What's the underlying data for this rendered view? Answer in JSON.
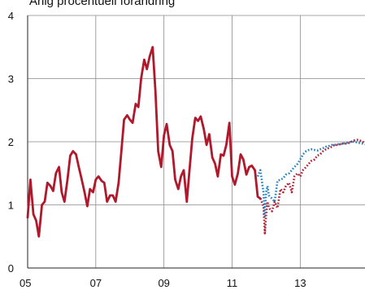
{
  "chart_data": {
    "type": "line",
    "title": "Årlig procentuell förändring",
    "xlabel": "",
    "ylabel": "",
    "x_ticks": [
      "05",
      "07",
      "09",
      "11",
      "13"
    ],
    "x_tick_values": [
      2005,
      2007,
      2009,
      2011,
      2013
    ],
    "xlim": [
      2005.0,
      2014.9
    ],
    "ylim": [
      0,
      4
    ],
    "y_ticks": [
      0,
      1,
      2,
      3,
      4
    ],
    "grid": true,
    "legend": "none",
    "series": [
      {
        "style": "solid",
        "color": "#b0182c",
        "x": [
          2005.0,
          2005.08,
          2005.17,
          2005.25,
          2005.33,
          2005.42,
          2005.5,
          2005.58,
          2005.67,
          2005.75,
          2005.83,
          2005.92,
          2006.0,
          2006.08,
          2006.17,
          2006.25,
          2006.33,
          2006.42,
          2006.5,
          2006.58,
          2006.67,
          2006.75,
          2006.83,
          2006.92,
          2007.0,
          2007.08,
          2007.17,
          2007.25,
          2007.33,
          2007.42,
          2007.5,
          2007.58,
          2007.67,
          2007.75,
          2007.83,
          2007.92,
          2008.0,
          2008.08,
          2008.17,
          2008.25,
          2008.33,
          2008.42,
          2008.5,
          2008.58,
          2008.67,
          2008.75,
          2008.83,
          2008.92,
          2009.0,
          2009.08,
          2009.17,
          2009.25,
          2009.33,
          2009.42,
          2009.5,
          2009.58,
          2009.67,
          2009.75,
          2009.83,
          2009.92,
          2010.0,
          2010.08,
          2010.17,
          2010.25,
          2010.33,
          2010.42,
          2010.5,
          2010.58,
          2010.67,
          2010.75,
          2010.83,
          2010.92,
          2011.0,
          2011.08,
          2011.17,
          2011.25,
          2011.33,
          2011.42,
          2011.5,
          2011.58,
          2011.67,
          2011.75,
          2011.83
        ],
        "y": [
          0.8,
          1.4,
          0.85,
          0.75,
          0.5,
          1.0,
          1.05,
          1.35,
          1.3,
          1.22,
          1.5,
          1.6,
          1.2,
          1.05,
          1.4,
          1.78,
          1.85,
          1.8,
          1.6,
          1.42,
          1.2,
          0.98,
          1.25,
          1.2,
          1.4,
          1.45,
          1.38,
          1.35,
          1.05,
          1.15,
          1.15,
          1.05,
          1.35,
          1.85,
          2.35,
          2.42,
          2.35,
          2.3,
          2.6,
          2.55,
          3.0,
          3.3,
          3.15,
          3.35,
          3.5,
          2.8,
          1.85,
          1.6,
          2.1,
          2.28,
          1.95,
          1.85,
          1.4,
          1.25,
          1.45,
          1.55,
          1.05,
          1.55,
          2.05,
          2.38,
          2.33,
          2.4,
          2.2,
          1.95,
          2.12,
          1.75,
          1.65,
          1.45,
          1.8,
          1.78,
          1.95,
          2.3,
          1.45,
          1.32,
          1.5,
          1.8,
          1.72,
          1.48,
          1.6,
          1.62,
          1.55,
          1.13,
          1.1
        ]
      },
      {
        "style": "dotted",
        "color": "#b0182c",
        "x": [
          2011.83,
          2011.92,
          2011.96,
          2012.0,
          2012.04,
          2012.08,
          2012.17,
          2012.25,
          2012.33,
          2012.42,
          2012.5,
          2012.58,
          2012.67,
          2012.75,
          2012.83,
          2012.92,
          2013.0,
          2013.08,
          2013.17,
          2013.25,
          2013.33,
          2013.42,
          2013.5,
          2013.58,
          2013.67,
          2013.75,
          2013.83,
          2013.92,
          2014.0,
          2014.08,
          2014.17,
          2014.25,
          2014.33,
          2014.42,
          2014.5,
          2014.58,
          2014.67,
          2014.75,
          2014.83,
          2014.9
        ],
        "y": [
          1.1,
          0.98,
          0.55,
          0.85,
          1.05,
          0.95,
          0.9,
          1.05,
          0.95,
          1.25,
          1.2,
          1.3,
          1.35,
          1.2,
          1.45,
          1.5,
          1.45,
          1.55,
          1.6,
          1.65,
          1.7,
          1.72,
          1.78,
          1.8,
          1.85,
          1.88,
          1.9,
          1.92,
          1.95,
          1.95,
          1.96,
          1.97,
          1.97,
          1.98,
          2.0,
          2.02,
          2.03,
          2.02,
          2.0,
          1.98
        ]
      },
      {
        "style": "dotted",
        "color": "#1f7fbf",
        "x": [
          2011.75,
          2011.83,
          2011.92,
          2011.96,
          2012.0,
          2012.04,
          2012.08,
          2012.17,
          2012.25,
          2012.33,
          2012.42,
          2012.5,
          2012.58,
          2012.67,
          2012.75,
          2012.83,
          2012.92,
          2013.0,
          2013.08,
          2013.17,
          2013.25,
          2013.33,
          2013.42,
          2013.5,
          2013.58,
          2013.67,
          2013.75,
          2013.83,
          2013.92,
          2014.0,
          2014.08,
          2014.17,
          2014.25,
          2014.33,
          2014.42,
          2014.5,
          2014.58,
          2014.67,
          2014.75,
          2014.83,
          2014.9
        ],
        "y": [
          1.45,
          1.55,
          1.2,
          0.82,
          1.2,
          1.3,
          1.15,
          1.1,
          1.05,
          1.38,
          1.4,
          1.42,
          1.48,
          1.5,
          1.55,
          1.6,
          1.65,
          1.72,
          1.8,
          1.85,
          1.87,
          1.88,
          1.87,
          1.86,
          1.88,
          1.9,
          1.92,
          1.93,
          1.95,
          1.95,
          1.96,
          1.96,
          1.97,
          1.98,
          1.99,
          2.0,
          2.0,
          1.99,
          1.98,
          1.97,
          1.96
        ]
      }
    ]
  }
}
